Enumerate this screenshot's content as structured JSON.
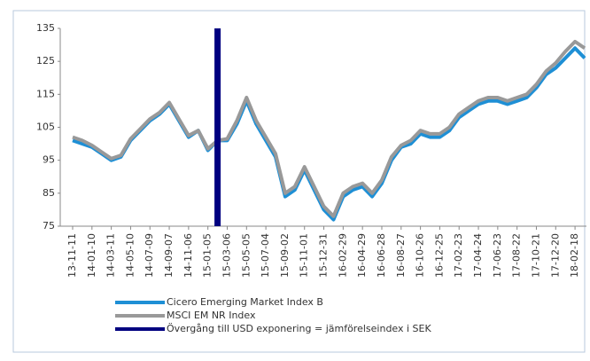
{
  "chart_data": {
    "type": "line",
    "categories": [
      "13-11-11",
      null,
      "14-01-10",
      null,
      "14-03-11",
      null,
      "14-05-10",
      null,
      "14-07-09",
      null,
      "14-09-07",
      null,
      "14-11-06",
      null,
      "15-01-05",
      null,
      "15-03-06",
      null,
      "15-05-05",
      null,
      "15-07-04",
      null,
      "15-09-02",
      null,
      "15-11-01",
      null,
      "15-12-31",
      null,
      "16-02-29",
      null,
      "16-04-29",
      null,
      "16-06-28",
      null,
      "16-08-27",
      null,
      "16-10-26",
      null,
      "16-12-25",
      null,
      "17-02-23",
      null,
      "17-04-24",
      null,
      "17-06-23",
      null,
      "17-08-22",
      null,
      "17-10-21",
      null,
      "17-12-20",
      null,
      "18-02-18",
      null
    ],
    "series": [
      {
        "name": "Cicero Emerging Market Index B",
        "color": "#1e8fd5",
        "values": [
          101,
          100,
          99,
          97,
          95,
          96,
          101,
          104,
          107,
          109,
          112,
          107,
          102,
          104,
          98,
          101,
          101,
          106,
          113,
          106,
          101,
          96,
          84,
          86,
          92,
          86,
          80,
          77,
          84,
          86,
          87,
          84,
          88,
          95,
          99,
          100,
          103,
          102,
          102,
          104,
          108,
          110,
          112,
          113,
          113,
          112,
          113,
          114,
          117,
          121,
          123,
          126,
          129,
          126
        ]
      },
      {
        "name": "MSCI EM NR Index",
        "color": "#999999",
        "values": [
          102,
          101,
          99.5,
          97.5,
          95.5,
          96.5,
          101.5,
          104.5,
          107.5,
          109.5,
          112.5,
          107.5,
          102.5,
          104,
          98.5,
          101,
          101.5,
          107,
          114,
          107,
          102,
          97,
          85,
          87,
          93,
          87,
          81,
          78,
          85,
          87,
          88,
          85,
          89,
          96,
          99.5,
          101,
          104,
          103,
          103,
          105,
          109,
          111,
          113,
          114,
          114,
          113,
          114,
          115,
          118,
          122,
          124.5,
          128,
          131,
          129
        ]
      },
      {
        "name": "Övergång till USD exponering = jämförelseindex i SEK",
        "color": "#000080",
        "type": "bar",
        "values": [
          null,
          null,
          null,
          null,
          null,
          null,
          null,
          null,
          null,
          null,
          null,
          null,
          null,
          null,
          null,
          135,
          null,
          null,
          null,
          null,
          null,
          null,
          null,
          null,
          null,
          null,
          null,
          null,
          null,
          null,
          null,
          null,
          null,
          null,
          null,
          null,
          null,
          null,
          null,
          null,
          null,
          null,
          null,
          null,
          null,
          null,
          null,
          null,
          null,
          null,
          null,
          null,
          null,
          null
        ]
      }
    ],
    "ylim": [
      75,
      135
    ],
    "yticks": [
      75,
      85,
      95,
      105,
      115,
      125,
      135
    ],
    "grid": false
  }
}
